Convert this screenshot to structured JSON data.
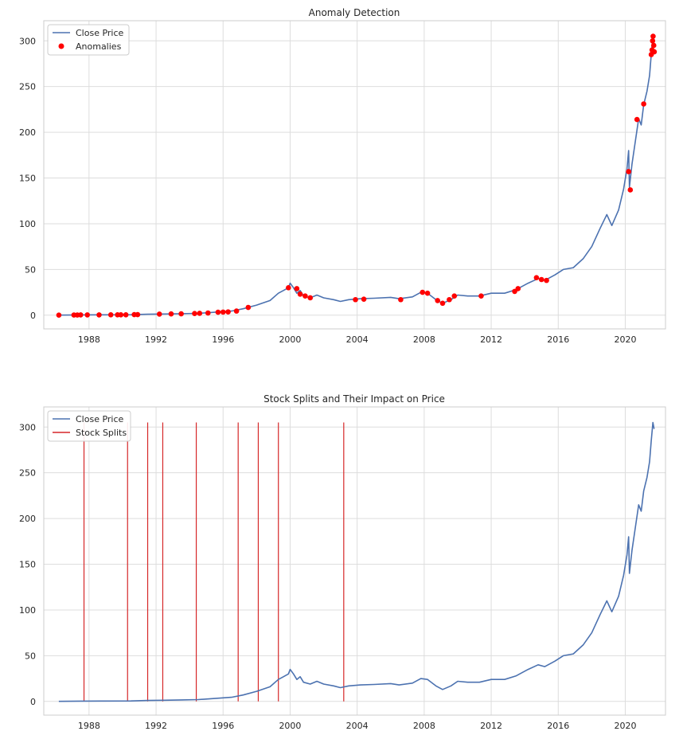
{
  "chart_data": [
    {
      "type": "line",
      "title": "Anomaly Detection",
      "xlabel": "",
      "ylabel": "",
      "xlim": [
        1985.3,
        2022.4
      ],
      "ylim": [
        -15,
        322
      ],
      "x_ticks": [
        "1988",
        "1992",
        "1996",
        "2000",
        "2004",
        "2008",
        "2012",
        "2016",
        "2020"
      ],
      "y_ticks": [
        "0",
        "50",
        "100",
        "150",
        "200",
        "250",
        "300"
      ],
      "grid": true,
      "legend_position": "top-left",
      "legend": [
        "Close Price",
        "Anomalies"
      ],
      "colors": {
        "line": "#4c72b0",
        "anomaly": "#ff0000",
        "grid": "#dddddd",
        "axes": "#cccccc"
      },
      "series": [
        {
          "name": "Close Price",
          "type": "line",
          "points": [
            [
              1986.2,
              0.1
            ],
            [
              1987.5,
              0.3
            ],
            [
              1989.0,
              0.4
            ],
            [
              1990.5,
              0.5
            ],
            [
              1991.5,
              1.0
            ],
            [
              1992.5,
              1.3
            ],
            [
              1993.5,
              1.6
            ],
            [
              1994.5,
              2.0
            ],
            [
              1995.5,
              3.2
            ],
            [
              1996.5,
              4.5
            ],
            [
              1997.2,
              7.0
            ],
            [
              1998.0,
              11.0
            ],
            [
              1998.8,
              16.0
            ],
            [
              1999.3,
              24.0
            ],
            [
              1999.6,
              27.0
            ],
            [
              1999.9,
              30.0
            ],
            [
              2000.0,
              35.0
            ],
            [
              2000.2,
              30.0
            ],
            [
              2000.4,
              24.0
            ],
            [
              2000.6,
              27.0
            ],
            [
              2000.8,
              21.0
            ],
            [
              2001.2,
              19.0
            ],
            [
              2001.6,
              22.0
            ],
            [
              2002.0,
              19.0
            ],
            [
              2002.6,
              17.0
            ],
            [
              2003.0,
              15.0
            ],
            [
              2003.5,
              17.0
            ],
            [
              2004.2,
              18.0
            ],
            [
              2005.0,
              18.5
            ],
            [
              2006.0,
              19.5
            ],
            [
              2006.5,
              18.0
            ],
            [
              2007.3,
              20.0
            ],
            [
              2007.8,
              25.0
            ],
            [
              2008.2,
              24.0
            ],
            [
              2008.7,
              17.0
            ],
            [
              2009.1,
              13.0
            ],
            [
              2009.6,
              17.0
            ],
            [
              2010.0,
              22.0
            ],
            [
              2010.6,
              21.0
            ],
            [
              2011.3,
              21.0
            ],
            [
              2012.0,
              24.0
            ],
            [
              2012.8,
              24.0
            ],
            [
              2013.5,
              28.0
            ],
            [
              2014.2,
              35.0
            ],
            [
              2014.8,
              40.0
            ],
            [
              2015.2,
              38.0
            ],
            [
              2015.8,
              44.0
            ],
            [
              2016.3,
              50.0
            ],
            [
              2016.9,
              52.0
            ],
            [
              2017.5,
              62.0
            ],
            [
              2018.0,
              75.0
            ],
            [
              2018.5,
              95.0
            ],
            [
              2018.9,
              110.0
            ],
            [
              2019.2,
              98.0
            ],
            [
              2019.6,
              115.0
            ],
            [
              2019.9,
              138.0
            ],
            [
              2020.1,
              160.0
            ],
            [
              2020.2,
              180.0
            ],
            [
              2020.25,
              140.0
            ],
            [
              2020.4,
              165.0
            ],
            [
              2020.6,
              190.0
            ],
            [
              2020.8,
              215.0
            ],
            [
              2020.95,
              208.0
            ],
            [
              2021.1,
              230.0
            ],
            [
              2021.3,
              245.0
            ],
            [
              2021.45,
              262.0
            ],
            [
              2021.55,
              285.0
            ],
            [
              2021.65,
              305.0
            ],
            [
              2021.72,
              298.0
            ]
          ]
        },
        {
          "name": "Anomalies",
          "type": "scatter",
          "points": [
            [
              1986.2,
              0.1
            ],
            [
              1987.1,
              0.2
            ],
            [
              1987.3,
              0.2
            ],
            [
              1987.5,
              0.3
            ],
            [
              1987.9,
              0.3
            ],
            [
              1988.6,
              0.3
            ],
            [
              1989.3,
              0.4
            ],
            [
              1989.7,
              0.4
            ],
            [
              1989.9,
              0.4
            ],
            [
              1990.2,
              0.4
            ],
            [
              1990.7,
              0.6
            ],
            [
              1990.9,
              0.6
            ],
            [
              1992.2,
              1.2
            ],
            [
              1992.9,
              1.4
            ],
            [
              1993.5,
              1.5
            ],
            [
              1994.3,
              1.8
            ],
            [
              1994.6,
              2.0
            ],
            [
              1995.1,
              2.4
            ],
            [
              1995.7,
              3.2
            ],
            [
              1996.0,
              3.4
            ],
            [
              1996.3,
              3.6
            ],
            [
              1996.8,
              4.5
            ],
            [
              1997.5,
              8.5
            ],
            [
              1999.9,
              30.0
            ],
            [
              2000.4,
              29.0
            ],
            [
              2000.6,
              23.0
            ],
            [
              2000.9,
              21.0
            ],
            [
              2001.2,
              19.0
            ],
            [
              2003.9,
              17.0
            ],
            [
              2004.4,
              17.5
            ],
            [
              2006.6,
              17.0
            ],
            [
              2007.9,
              25.0
            ],
            [
              2008.2,
              24.0
            ],
            [
              2008.8,
              16.0
            ],
            [
              2009.1,
              13.0
            ],
            [
              2009.5,
              17.0
            ],
            [
              2009.8,
              21.0
            ],
            [
              2011.4,
              21.0
            ],
            [
              2013.4,
              26.0
            ],
            [
              2013.6,
              29.0
            ],
            [
              2014.7,
              41.0
            ],
            [
              2015.0,
              39.0
            ],
            [
              2015.3,
              38.0
            ],
            [
              2020.2,
              157.0
            ],
            [
              2020.3,
              137.0
            ],
            [
              2020.7,
              214.0
            ],
            [
              2021.1,
              231.0
            ],
            [
              2021.55,
              285.0
            ],
            [
              2021.6,
              290.0
            ],
            [
              2021.63,
              300.0
            ],
            [
              2021.66,
              305.0
            ],
            [
              2021.7,
              295.0
            ],
            [
              2021.73,
              288.0
            ]
          ]
        }
      ]
    },
    {
      "type": "line",
      "title": "Stock Splits and Their Impact on Price",
      "xlabel": "",
      "ylabel": "",
      "xlim": [
        1985.3,
        2022.4
      ],
      "ylim": [
        -15,
        322
      ],
      "x_ticks": [
        "1988",
        "1992",
        "1996",
        "2000",
        "2004",
        "2008",
        "2012",
        "2016",
        "2020"
      ],
      "y_ticks": [
        "0",
        "50",
        "100",
        "150",
        "200",
        "250",
        "300"
      ],
      "grid": true,
      "legend_position": "top-left",
      "legend": [
        "Close Price",
        "Stock Splits"
      ],
      "colors": {
        "line": "#4c72b0",
        "split": "#d62728",
        "grid": "#dddddd",
        "axes": "#cccccc"
      },
      "split_ymin": 0,
      "split_ymax": 305,
      "stock_splits_x": [
        1987.7,
        1990.3,
        1991.5,
        1992.4,
        1994.4,
        1996.9,
        1998.1,
        1999.3,
        2003.2
      ]
    }
  ]
}
